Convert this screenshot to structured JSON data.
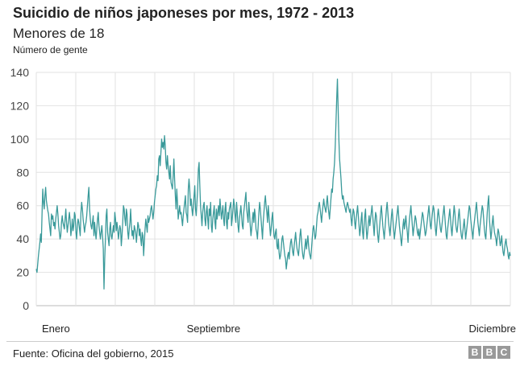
{
  "chart_data": {
    "type": "line",
    "title": "Suicidio de niños japoneses por mes, 1972 - 2013",
    "subtitle": "Menores de 18",
    "ylabel": "Número de gente",
    "ylim": [
      0,
      140
    ],
    "yticks": [
      0,
      20,
      40,
      60,
      80,
      100,
      120,
      140
    ],
    "x_tick_labels": [
      {
        "label": "Enero",
        "index": 0
      },
      {
        "label": "Septiembre",
        "index": 246
      },
      {
        "label": "Diciembre",
        "index": 329
      }
    ],
    "grid": true,
    "line_color": "#3a9a9a",
    "values": [
      22,
      20,
      25,
      30,
      34,
      38,
      43,
      38,
      55,
      70,
      62,
      58,
      66,
      71,
      63,
      60,
      57,
      55,
      50,
      46,
      42,
      55,
      52,
      54,
      48,
      50,
      46,
      52,
      56,
      60,
      55,
      48,
      44,
      40,
      42,
      50,
      54,
      50,
      48,
      46,
      52,
      58,
      50,
      44,
      48,
      52,
      56,
      51,
      42,
      46,
      52,
      45,
      48,
      56,
      54,
      44,
      40,
      48,
      52,
      50,
      46,
      42,
      56,
      62,
      58,
      52,
      48,
      44,
      48,
      50,
      54,
      60,
      66,
      71,
      58,
      52,
      48,
      46,
      50,
      54,
      42,
      50,
      44,
      40,
      46,
      52,
      56,
      48,
      44,
      40,
      44,
      48,
      42,
      34,
      10,
      28,
      40,
      54,
      58,
      44,
      40,
      36,
      46,
      50,
      42,
      40,
      44,
      48,
      44,
      56,
      52,
      45,
      50,
      46,
      40,
      44,
      48,
      46,
      36,
      42,
      50,
      60,
      58,
      52,
      48,
      58,
      55,
      44,
      40,
      46,
      50,
      58,
      48,
      42,
      45,
      40,
      48,
      46,
      44,
      38,
      44,
      50,
      48,
      42,
      46,
      40,
      36,
      44,
      42,
      30,
      38,
      46,
      52,
      48,
      44,
      54,
      50,
      52,
      54,
      58,
      60,
      56,
      52,
      56,
      62,
      66,
      70,
      72,
      78,
      75,
      88,
      90,
      84,
      92,
      100,
      95,
      98,
      94,
      102,
      96,
      86,
      82,
      90,
      84,
      80,
      76,
      84,
      74,
      72,
      70,
      78,
      88,
      76,
      66,
      58,
      70,
      62,
      52,
      56,
      60,
      55,
      56,
      52,
      48,
      54,
      58,
      62,
      66,
      56,
      54,
      50,
      70,
      76,
      70,
      60,
      64,
      58,
      54,
      60,
      66,
      72,
      58,
      54,
      62,
      70,
      82,
      86,
      72,
      60,
      54,
      48,
      56,
      60,
      62,
      52,
      48,
      56,
      60,
      52,
      46,
      58,
      54,
      62,
      48,
      44,
      52,
      56,
      60,
      50,
      46,
      58,
      52,
      56,
      60,
      54,
      64,
      58,
      52,
      56,
      60,
      52,
      48,
      58,
      62,
      50,
      46,
      56,
      52,
      58,
      60,
      62,
      48,
      52,
      58,
      64,
      60,
      54,
      50,
      62,
      56,
      48,
      44,
      52,
      56,
      60,
      54,
      48,
      46,
      56,
      60,
      64,
      68,
      58,
      54,
      50,
      62,
      56,
      48,
      42,
      46,
      52,
      56,
      50,
      58,
      54,
      46,
      44,
      40,
      48,
      56,
      62,
      58,
      52,
      46,
      40,
      50,
      56,
      62,
      66,
      60,
      56,
      50,
      60,
      54,
      48,
      42,
      46,
      52,
      56,
      48,
      42,
      40,
      44,
      46,
      36,
      34,
      40,
      32,
      28,
      30,
      34,
      40,
      42,
      38,
      34,
      30,
      28,
      22,
      26,
      30,
      32,
      28,
      34,
      38,
      40,
      36,
      32,
      30,
      36,
      40,
      44,
      38,
      34,
      32,
      30,
      36,
      42,
      46,
      40,
      34,
      30,
      28,
      32,
      36,
      40,
      34,
      38,
      42,
      36,
      32,
      30,
      28,
      34,
      40,
      46,
      48,
      44,
      40,
      42,
      48,
      54,
      56,
      60,
      62,
      58,
      54,
      50,
      56,
      60,
      64,
      60,
      58,
      56,
      62,
      66,
      60,
      56,
      52,
      58,
      64,
      70,
      68,
      76,
      80,
      86,
      96,
      110,
      124,
      136,
      118,
      100,
      88,
      82,
      76,
      68,
      64,
      66,
      62,
      60,
      58,
      56,
      60,
      62,
      60,
      58,
      56,
      58,
      52,
      48,
      54,
      58,
      56,
      50,
      46,
      52,
      56,
      60,
      54,
      48,
      42,
      46,
      52,
      56,
      44,
      40,
      48,
      54,
      58,
      46,
      40,
      44,
      50,
      54,
      48,
      52,
      56,
      60,
      54,
      48,
      42,
      50,
      56,
      54,
      48,
      42,
      38,
      44,
      50,
      56,
      60,
      54,
      48,
      44,
      40,
      46,
      52,
      58,
      62,
      56,
      50,
      46,
      42,
      48,
      54,
      58,
      52,
      46,
      40,
      44,
      48,
      52,
      56,
      60,
      54,
      48,
      44,
      40,
      36,
      42,
      48,
      52,
      46,
      50,
      54,
      48,
      44,
      38,
      46,
      52,
      56,
      60,
      54,
      48,
      42,
      46,
      50,
      54,
      52,
      48,
      44,
      42,
      46,
      40,
      44,
      48,
      52,
      56,
      54,
      50,
      46,
      42,
      44,
      48,
      52,
      56,
      60,
      54,
      48,
      46,
      52,
      56,
      60,
      58,
      52,
      46,
      42,
      48,
      54,
      58,
      54,
      50,
      46,
      44,
      48,
      52,
      56,
      60,
      54,
      48,
      42,
      40,
      46,
      50,
      54,
      58,
      52,
      46,
      42,
      48,
      54,
      60,
      56,
      50,
      46,
      44,
      48,
      54,
      58,
      52,
      46,
      42,
      40,
      44,
      48,
      52,
      46,
      40,
      44,
      48,
      52,
      56,
      60,
      58,
      52,
      48,
      44,
      40,
      46,
      50,
      54,
      58,
      62,
      56,
      50,
      46,
      42,
      48,
      52,
      56,
      60,
      58,
      52,
      46,
      42,
      40,
      48,
      56,
      62,
      66,
      52,
      46,
      40,
      44,
      50,
      54,
      48,
      44,
      42,
      40,
      36,
      42,
      46,
      44,
      40,
      36,
      38,
      42,
      36,
      32,
      30,
      34,
      38,
      40,
      36,
      34,
      30,
      28,
      32,
      30
    ]
  },
  "footer": {
    "source": "Fuente: Oficina del gobierno, 2015",
    "logo_letters": [
      "B",
      "B",
      "C"
    ]
  }
}
